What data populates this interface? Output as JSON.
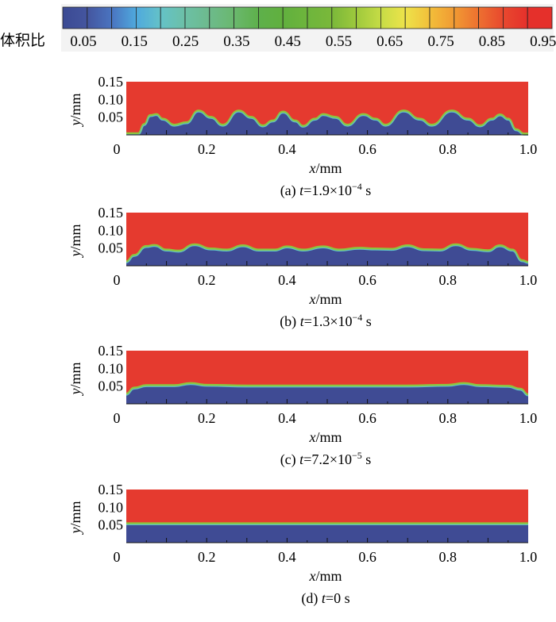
{
  "colorbar": {
    "label": "体积比",
    "ticks": [
      "0.05",
      "0.15",
      "0.25",
      "0.35",
      "0.45",
      "0.55",
      "0.65",
      "0.75",
      "0.85",
      "0.95"
    ],
    "colors": [
      "#3b4a93",
      "#44559f",
      "#4a74c0",
      "#4fa9dd",
      "#64c2c8",
      "#6cc0a6",
      "#6dba8c",
      "#6ab86e",
      "#5eb04b",
      "#61b03e",
      "#6eb53c",
      "#7ab83a",
      "#9ec93c",
      "#c6dc46",
      "#ede34a",
      "#f2bf3a",
      "#f19a33",
      "#ed7030",
      "#e8482e",
      "#e5302b"
    ]
  },
  "chart_data": [
    {
      "type": "heatmap",
      "xlabel_var": "x",
      "xlabel_unit": "/mm",
      "ylabel_var": "y",
      "ylabel_unit": "/mm",
      "xlim": [
        0,
        1.0
      ],
      "ylim": [
        0,
        0.15
      ],
      "xticks": [
        "0",
        "0.2",
        "0.4",
        "0.6",
        "0.8",
        "1.0"
      ],
      "yticks": [
        "0.05",
        "0.10",
        "0.15"
      ],
      "caption_pre": "(a) ",
      "caption_t": "t",
      "caption_eq": "=1.9×10",
      "caption_exp": "−4",
      "caption_post": " s",
      "interface": [
        [
          0,
          0.004
        ],
        [
          0.03,
          0.004
        ],
        [
          0.045,
          0.03
        ],
        [
          0.06,
          0.055
        ],
        [
          0.075,
          0.058
        ],
        [
          0.09,
          0.045
        ],
        [
          0.12,
          0.028
        ],
        [
          0.15,
          0.035
        ],
        [
          0.18,
          0.068
        ],
        [
          0.21,
          0.05
        ],
        [
          0.24,
          0.028
        ],
        [
          0.28,
          0.068
        ],
        [
          0.31,
          0.05
        ],
        [
          0.34,
          0.026
        ],
        [
          0.365,
          0.04
        ],
        [
          0.39,
          0.065
        ],
        [
          0.42,
          0.04
        ],
        [
          0.44,
          0.025
        ],
        [
          0.47,
          0.045
        ],
        [
          0.49,
          0.058
        ],
        [
          0.52,
          0.05
        ],
        [
          0.55,
          0.028
        ],
        [
          0.59,
          0.058
        ],
        [
          0.62,
          0.045
        ],
        [
          0.645,
          0.028
        ],
        [
          0.69,
          0.068
        ],
        [
          0.73,
          0.045
        ],
        [
          0.76,
          0.028
        ],
        [
          0.81,
          0.068
        ],
        [
          0.85,
          0.045
        ],
        [
          0.88,
          0.026
        ],
        [
          0.91,
          0.045
        ],
        [
          0.93,
          0.057
        ],
        [
          0.95,
          0.045
        ],
        [
          0.97,
          0.015
        ],
        [
          0.99,
          0.003
        ],
        [
          1.0,
          0.003
        ]
      ]
    },
    {
      "type": "heatmap",
      "xlabel_var": "x",
      "xlabel_unit": "/mm",
      "ylabel_var": "y",
      "ylabel_unit": "/mm",
      "xlim": [
        0,
        1.0
      ],
      "ylim": [
        0,
        0.15
      ],
      "xticks": [
        "0",
        "0.2",
        "0.4",
        "0.6",
        "0.8",
        "1.0"
      ],
      "yticks": [
        "0.05",
        "0.10",
        "0.15"
      ],
      "caption_pre": "(b) ",
      "caption_t": "t",
      "caption_eq": "=1.3×10",
      "caption_exp": "−4",
      "caption_post": " s",
      "interface": [
        [
          0,
          0.012
        ],
        [
          0.02,
          0.03
        ],
        [
          0.05,
          0.055
        ],
        [
          0.07,
          0.058
        ],
        [
          0.1,
          0.045
        ],
        [
          0.13,
          0.042
        ],
        [
          0.17,
          0.06
        ],
        [
          0.21,
          0.048
        ],
        [
          0.25,
          0.045
        ],
        [
          0.29,
          0.057
        ],
        [
          0.33,
          0.045
        ],
        [
          0.37,
          0.045
        ],
        [
          0.4,
          0.054
        ],
        [
          0.44,
          0.045
        ],
        [
          0.49,
          0.054
        ],
        [
          0.53,
          0.045
        ],
        [
          0.58,
          0.05
        ],
        [
          0.62,
          0.048
        ],
        [
          0.66,
          0.047
        ],
        [
          0.7,
          0.057
        ],
        [
          0.74,
          0.046
        ],
        [
          0.78,
          0.045
        ],
        [
          0.82,
          0.06
        ],
        [
          0.86,
          0.047
        ],
        [
          0.9,
          0.043
        ],
        [
          0.93,
          0.057
        ],
        [
          0.96,
          0.045
        ],
        [
          0.985,
          0.015
        ],
        [
          1.0,
          0.01
        ]
      ]
    },
    {
      "type": "heatmap",
      "xlabel_var": "x",
      "xlabel_unit": "/mm",
      "ylabel_var": "y",
      "ylabel_unit": "/mm",
      "xlim": [
        0,
        1.0
      ],
      "ylim": [
        0,
        0.15
      ],
      "xticks": [
        "0",
        "0.2",
        "0.4",
        "0.6",
        "0.8",
        "1.0"
      ],
      "yticks": [
        "0.05",
        "0.10",
        "0.15"
      ],
      "caption_pre": "(c) ",
      "caption_t": "t",
      "caption_eq": "=7.2×10",
      "caption_exp": "−5",
      "caption_post": " s",
      "interface": [
        [
          0,
          0.028
        ],
        [
          0.02,
          0.045
        ],
        [
          0.05,
          0.052
        ],
        [
          0.12,
          0.052
        ],
        [
          0.16,
          0.058
        ],
        [
          0.2,
          0.053
        ],
        [
          0.3,
          0.051
        ],
        [
          0.5,
          0.051
        ],
        [
          0.7,
          0.051
        ],
        [
          0.8,
          0.053
        ],
        [
          0.84,
          0.058
        ],
        [
          0.88,
          0.052
        ],
        [
          0.95,
          0.05
        ],
        [
          0.98,
          0.042
        ],
        [
          1.0,
          0.026
        ]
      ]
    },
    {
      "type": "heatmap",
      "xlabel_var": "x",
      "xlabel_unit": "/mm",
      "ylabel_var": "y",
      "ylabel_unit": "/mm",
      "xlim": [
        0,
        1.0
      ],
      "ylim": [
        0,
        0.15
      ],
      "xticks": [
        "0",
        "0.2",
        "0.4",
        "0.6",
        "0.8",
        "1.0"
      ],
      "yticks": [
        "0.05",
        "0.10",
        "0.15"
      ],
      "caption_pre": "(d) ",
      "caption_t": "t",
      "caption_eq": "=0 s",
      "caption_exp": "",
      "caption_post": "",
      "interface": [
        [
          0,
          0.054
        ],
        [
          1.0,
          0.054
        ]
      ]
    }
  ]
}
